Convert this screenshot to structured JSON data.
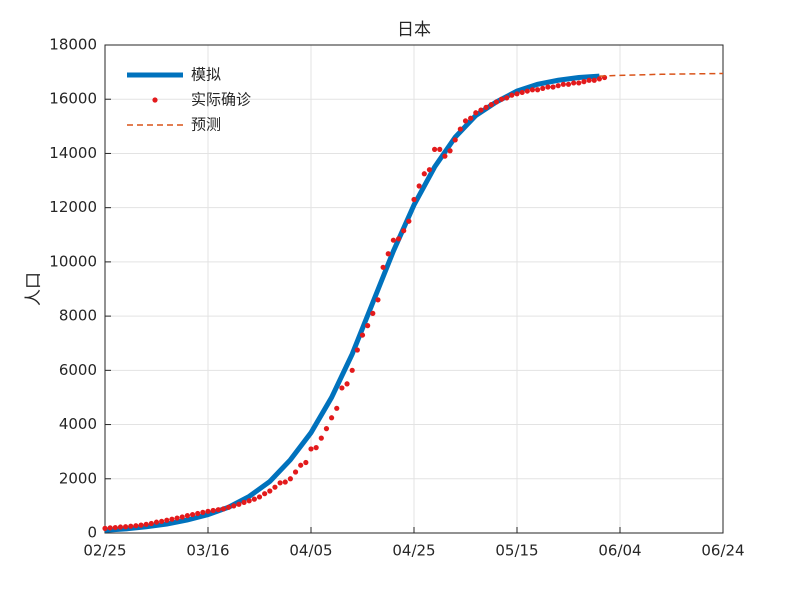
{
  "chart_data": {
    "type": "line",
    "title": "日本",
    "y_label": "人口",
    "xlim": [
      "02/25",
      "06/24"
    ],
    "xticks": [
      "02/25",
      "03/16",
      "04/05",
      "04/25",
      "05/15",
      "06/04",
      "06/24"
    ],
    "ylim": [
      0,
      18000
    ],
    "yticks": [
      0,
      2000,
      4000,
      6000,
      8000,
      10000,
      12000,
      14000,
      16000,
      18000
    ],
    "grid": true,
    "legend": "upper left",
    "series": [
      {
        "name": "模拟",
        "color": "#0072bd",
        "style": "line",
        "x": [
          "02/25",
          "02/29",
          "03/04",
          "03/08",
          "03/12",
          "03/16",
          "03/20",
          "03/24",
          "03/28",
          "04/01",
          "04/05",
          "04/09",
          "04/13",
          "04/17",
          "04/21",
          "04/25",
          "04/29",
          "05/03",
          "05/07",
          "05/11",
          "05/15",
          "05/19",
          "05/23",
          "05/27",
          "05/31"
        ],
        "values": [
          100,
          150,
          230,
          330,
          480,
          680,
          950,
          1350,
          1900,
          2700,
          3700,
          5000,
          6600,
          8500,
          10400,
          12100,
          13500,
          14600,
          15400,
          15900,
          16300,
          16550,
          16700,
          16800,
          16850
        ]
      },
      {
        "name": "实际确诊",
        "color": "#e31a1c",
        "style": "scatter",
        "x": [
          "02/25",
          "02/26",
          "02/27",
          "02/28",
          "02/29",
          "03/01",
          "03/02",
          "03/03",
          "03/04",
          "03/05",
          "03/06",
          "03/07",
          "03/08",
          "03/09",
          "03/10",
          "03/11",
          "03/12",
          "03/13",
          "03/14",
          "03/15",
          "03/16",
          "03/17",
          "03/18",
          "03/19",
          "03/20",
          "03/21",
          "03/22",
          "03/23",
          "03/24",
          "03/25",
          "03/26",
          "03/27",
          "03/28",
          "03/29",
          "03/30",
          "03/31",
          "04/01",
          "04/02",
          "04/03",
          "04/04",
          "04/05",
          "04/06",
          "04/07",
          "04/08",
          "04/09",
          "04/10",
          "04/11",
          "04/12",
          "04/13",
          "04/14",
          "04/15",
          "04/16",
          "04/17",
          "04/18",
          "04/19",
          "04/20",
          "04/21",
          "04/22",
          "04/23",
          "04/24",
          "04/25",
          "04/26",
          "04/27",
          "04/28",
          "04/29",
          "04/30",
          "05/01",
          "05/02",
          "05/03",
          "05/04",
          "05/05",
          "05/06",
          "05/07",
          "05/08",
          "05/09",
          "05/10",
          "05/11",
          "05/12",
          "05/13",
          "05/14",
          "05/15",
          "05/16",
          "05/17",
          "05/18",
          "05/19",
          "05/20",
          "05/21",
          "05/22",
          "05/23",
          "05/24",
          "05/25",
          "05/26",
          "05/27",
          "05/28",
          "05/29",
          "05/30",
          "05/31",
          "06/01"
        ],
        "values": [
          170,
          190,
          200,
          220,
          230,
          250,
          270,
          290,
          320,
          350,
          400,
          430,
          470,
          510,
          550,
          590,
          640,
          680,
          720,
          760,
          800,
          830,
          860,
          890,
          950,
          1000,
          1060,
          1130,
          1190,
          1250,
          1330,
          1450,
          1550,
          1690,
          1850,
          1880,
          2000,
          2250,
          2500,
          2600,
          3100,
          3150,
          3500,
          3850,
          4250,
          4600,
          5350,
          5500,
          6000,
          6750,
          7300,
          7650,
          8100,
          8600,
          9800,
          10300,
          10800,
          10850,
          11150,
          11500,
          12300,
          12800,
          13250,
          13400,
          14150,
          14150,
          13900,
          14100,
          14500,
          14900,
          15200,
          15300,
          15500,
          15600,
          15700,
          15800,
          15900,
          16000,
          16050,
          16150,
          16200,
          16250,
          16300,
          16350,
          16350,
          16400,
          16450,
          16450,
          16500,
          16550,
          16550,
          16600,
          16600,
          16650,
          16700,
          16700,
          16750,
          16800
        ]
      },
      {
        "name": "预测",
        "color": "#d95319",
        "style": "dashed",
        "x": [
          "05/31",
          "06/04",
          "06/12",
          "06/24"
        ],
        "values": [
          16850,
          16880,
          16920,
          16950
        ]
      }
    ]
  }
}
